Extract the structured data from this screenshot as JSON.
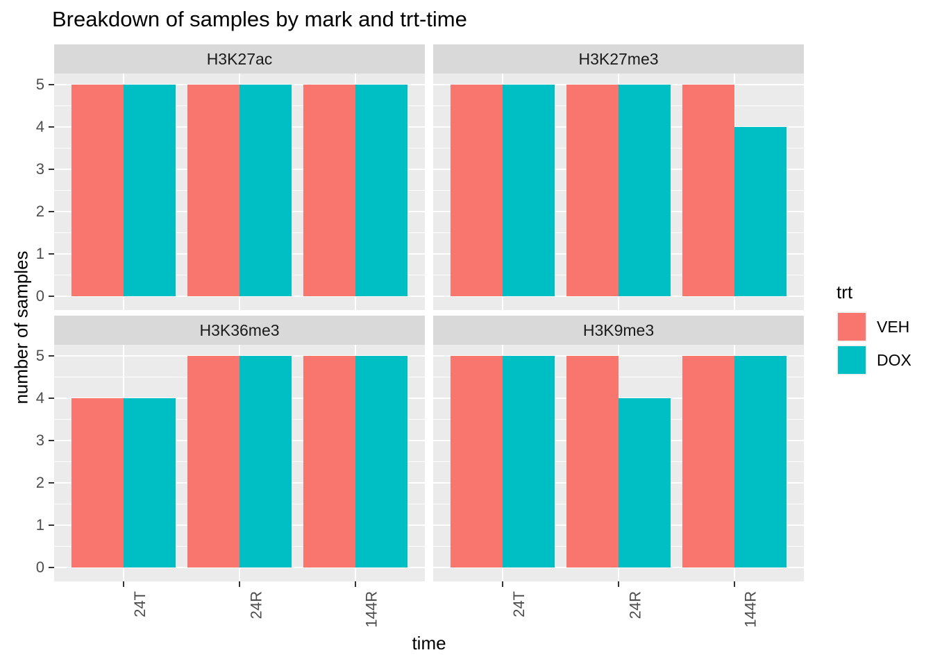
{
  "chart_data": {
    "type": "bar",
    "title": "Breakdown of samples by mark and trt-time",
    "xlabel": "time",
    "ylabel": "number of samples",
    "categories": [
      "24T",
      "24R",
      "144R"
    ],
    "yticks": [
      0,
      1,
      2,
      3,
      4,
      5
    ],
    "ylim": [
      0,
      5
    ],
    "grid": true,
    "facets": [
      {
        "name": "H3K27ac",
        "series": [
          {
            "name": "VEH",
            "values": [
              5,
              5,
              5
            ]
          },
          {
            "name": "DOX",
            "values": [
              5,
              5,
              5
            ]
          }
        ]
      },
      {
        "name": "H3K27me3",
        "series": [
          {
            "name": "VEH",
            "values": [
              5,
              5,
              5
            ]
          },
          {
            "name": "DOX",
            "values": [
              5,
              5,
              4
            ]
          }
        ]
      },
      {
        "name": "H3K36me3",
        "series": [
          {
            "name": "VEH",
            "values": [
              4,
              5,
              5
            ]
          },
          {
            "name": "DOX",
            "values": [
              4,
              5,
              5
            ]
          }
        ]
      },
      {
        "name": "H3K9me3",
        "series": [
          {
            "name": "VEH",
            "values": [
              5,
              5,
              5
            ]
          },
          {
            "name": "DOX",
            "values": [
              5,
              4,
              5
            ]
          }
        ]
      }
    ],
    "legend": {
      "title": "trt",
      "position": "right",
      "entries": [
        {
          "label": "VEH",
          "color": "#F8766D"
        },
        {
          "label": "DOX",
          "color": "#00BFC4"
        }
      ]
    },
    "style": {
      "panel_bg": "#EBEBEB",
      "strip_bg": "#D9D9D9",
      "grid_color": "#FFFFFF",
      "tick_label_color": "#4D4D4D",
      "text_color": "#000000"
    }
  }
}
